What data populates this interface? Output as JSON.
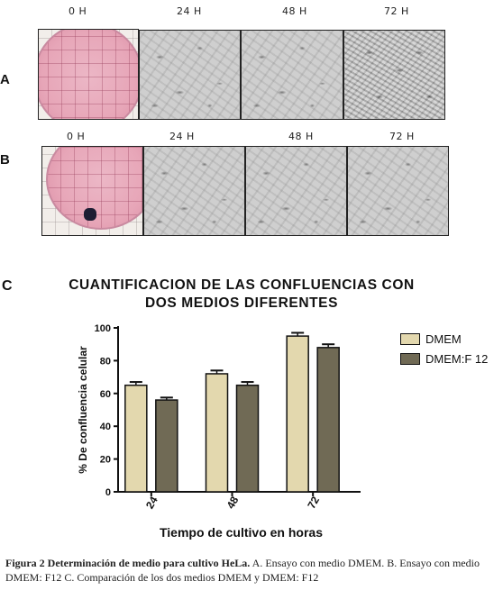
{
  "panel_a": {
    "row_label": "A",
    "time_labels": [
      "0 H",
      "24 H",
      "48 H",
      "72 H"
    ]
  },
  "panel_b": {
    "row_label": "B",
    "time_labels": [
      "0 H",
      "24 H",
      "48 H",
      "72 H"
    ]
  },
  "panel_c": {
    "label": "C"
  },
  "chart_data": {
    "type": "bar",
    "title_line1": "CUANTIFICACION DE LAS CONFLUENCIAS CON",
    "title_line2": "DOS MEDIOS DIFERENTES",
    "xlabel": "Tiempo de cultivo en horas",
    "ylabel": "% De confluencia celular",
    "categories": [
      "24",
      "48",
      "72"
    ],
    "ylim": [
      0,
      100
    ],
    "yticks": [
      "0",
      "20",
      "40",
      "60",
      "80",
      "100"
    ],
    "legend_position": "right",
    "series": [
      {
        "name": "DMEM",
        "values": [
          65,
          72,
          95
        ],
        "errors": [
          2,
          2,
          2
        ],
        "color": "#e3d8ae"
      },
      {
        "name": "DMEM:F 12",
        "values": [
          56,
          65,
          88
        ],
        "errors": [
          1.5,
          2,
          2
        ],
        "color": "#706a55"
      }
    ]
  },
  "caption": {
    "bold": "Figura 2 Determinación de medio para cultivo HeLa.",
    "text": " A. Ensayo con medio DMEM. B. Ensayo con medio DMEM: F12  C. Comparación de los dos medios DMEM y DMEM: F12"
  }
}
